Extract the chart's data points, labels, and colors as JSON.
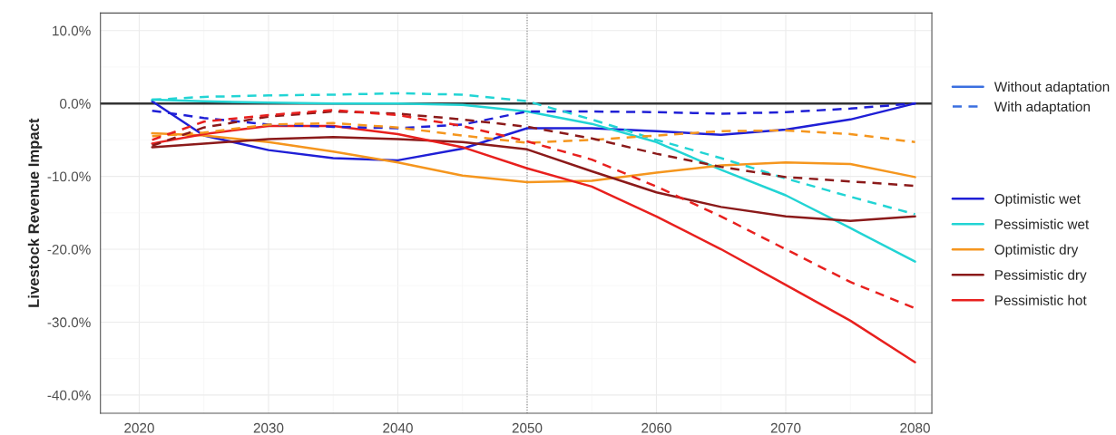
{
  "chart_data": {
    "type": "line",
    "ylabel": "Livestock Revenue Impact",
    "x": [
      2021,
      2025,
      2030,
      2035,
      2040,
      2045,
      2050,
      2055,
      2060,
      2065,
      2070,
      2075,
      2080
    ],
    "xlim": [
      2017,
      2081.3
    ],
    "ylim": [
      -42.5,
      12.4
    ],
    "xticks": [
      2020,
      2030,
      2040,
      2050,
      2060,
      2070,
      2080
    ],
    "yticks": [
      {
        "value": -40,
        "label": "-40.0%"
      },
      {
        "value": -30,
        "label": "-30.0%"
      },
      {
        "value": -20,
        "label": "-20.0%"
      },
      {
        "value": -10,
        "label": "-10.0%"
      },
      {
        "value": 0,
        "label": "0.0%"
      },
      {
        "value": 10,
        "label": "10.0%"
      }
    ],
    "grid": true,
    "legend": "right",
    "annotations": [
      "Without adaptation",
      "With adaptation"
    ],
    "ref_lines": [
      {
        "axis": "y",
        "value": 0,
        "color": "#333333",
        "line_style": "solid"
      },
      {
        "axis": "x",
        "value": 2050,
        "color": "#888888",
        "line_style": "dotted"
      }
    ],
    "series": [
      {
        "name": "Optimistic wet",
        "color": "#1f1fd6",
        "line_style": "solid",
        "values": [
          0.3,
          -4.4,
          -6.4,
          -7.5,
          -7.8,
          -6.2,
          -3.4,
          -3.4,
          -3.8,
          -4.3,
          -3.6,
          -2.2,
          0
        ]
      },
      {
        "name": "Pessimistic wet",
        "color": "#22d4d4",
        "line_style": "solid",
        "values": [
          0.5,
          0.3,
          0.1,
          0,
          0,
          -0.2,
          -1.1,
          -2.8,
          -5.3,
          -9.1,
          -12.6,
          -17.1,
          -21.7
        ]
      },
      {
        "name": "Optimistic dry",
        "color": "#f5961e",
        "line_style": "solid",
        "values": [
          -4.1,
          -4.4,
          -5.3,
          -6.6,
          -8.1,
          -9.9,
          -10.8,
          -10.6,
          -9.5,
          -8.5,
          -8.1,
          -8.3,
          -10.1
        ]
      },
      {
        "name": "Pessimistic dry",
        "color": "#8b1a1a",
        "line_style": "solid",
        "values": [
          -6.0,
          -5.5,
          -4.9,
          -4.6,
          -4.9,
          -5.3,
          -6.3,
          -9.3,
          -12.2,
          -14.2,
          -15.5,
          -16.1,
          -15.5
        ]
      },
      {
        "name": "Pessimistic hot",
        "color": "#e8201e",
        "line_style": "solid",
        "values": [
          -5.5,
          -4.2,
          -3.1,
          -3.1,
          -4.2,
          -6.0,
          -8.9,
          -11.4,
          -15.5,
          -20.0,
          -24.9,
          -29.8,
          -35.5
        ]
      },
      {
        "color": "#1f1fd6",
        "line_style": "dashed",
        "values": [
          -1.0,
          -2.0,
          -2.9,
          -3.2,
          -3.4,
          -2.9,
          -1.1,
          -1.1,
          -1.2,
          -1.4,
          -1.2,
          -0.7,
          0
        ]
      },
      {
        "color": "#22d4d4",
        "line_style": "dashed",
        "values": [
          0.5,
          0.9,
          1.1,
          1.2,
          1.4,
          1.2,
          0.3,
          -2.2,
          -5.0,
          -7.5,
          -10.3,
          -12.8,
          -15.2
        ]
      },
      {
        "color": "#f5961e",
        "line_style": "dashed",
        "values": [
          -4.5,
          -4.0,
          -2.9,
          -2.7,
          -3.3,
          -4.4,
          -5.4,
          -5.0,
          -4.4,
          -3.8,
          -3.7,
          -4.2,
          -5.3
        ]
      },
      {
        "color": "#8b1a1a",
        "line_style": "dashed",
        "values": [
          -5.8,
          -3.3,
          -1.8,
          -1.1,
          -1.4,
          -2.2,
          -3.2,
          -4.8,
          -6.9,
          -8.7,
          -10.1,
          -10.7,
          -11.3
        ]
      },
      {
        "color": "#e8201e",
        "line_style": "dashed",
        "values": [
          -5.0,
          -2.5,
          -1.6,
          -0.9,
          -1.6,
          -3.1,
          -5.2,
          -7.7,
          -11.4,
          -15.5,
          -20.0,
          -24.5,
          -28.1
        ]
      }
    ]
  }
}
